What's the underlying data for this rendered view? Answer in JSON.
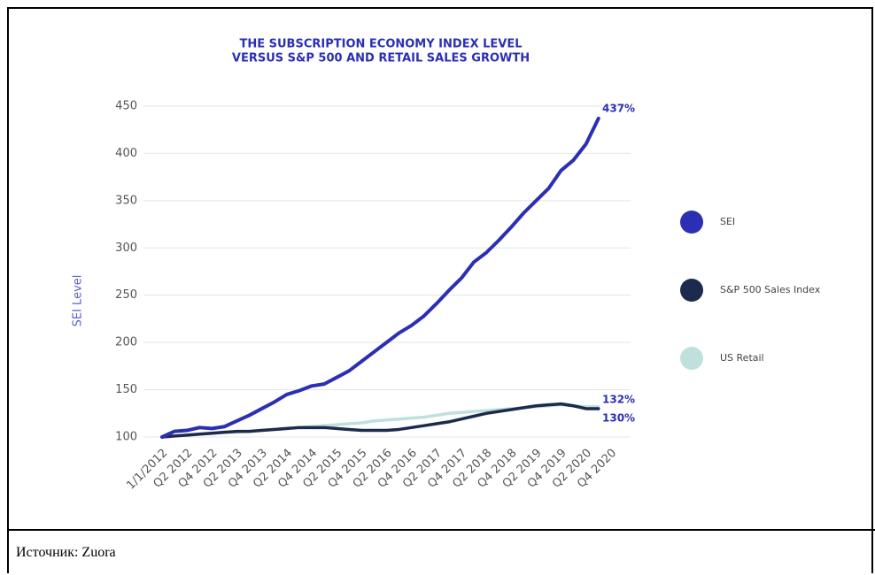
{
  "chart_data": {
    "type": "line",
    "title": [
      "THE SUBSCRIPTION ECONOMY INDEX LEVEL",
      "VERSUS S&P 500 AND RETAIL SALES GROWTH"
    ],
    "y_label": "SEI Level",
    "categories": [
      "1/1/2012",
      null,
      "Q2 2012",
      null,
      "Q4 2012",
      null,
      "Q2 2013",
      null,
      "Q4 2013",
      null,
      "Q2 2014",
      null,
      "Q4 2014",
      null,
      "Q2 2015",
      null,
      "Q4 2015",
      null,
      "Q2 2016",
      null,
      "Q4 2016",
      null,
      "Q2 2017",
      null,
      "Q4 2017",
      null,
      "Q2 2018",
      null,
      "Q4 2018",
      null,
      "Q2 2019",
      null,
      "Q4 2019",
      null,
      "Q2 2020",
      null,
      "Q4 2020"
    ],
    "series": [
      {
        "name": "SEI",
        "color": "#2b2fb3",
        "values": [
          100,
          106,
          107,
          110,
          109,
          111,
          117,
          123,
          130,
          137,
          145,
          149,
          154,
          156,
          163,
          170,
          180,
          190,
          200,
          210,
          218,
          228,
          241,
          255,
          268,
          285,
          295,
          308,
          322,
          337,
          350,
          363,
          382,
          393,
          410,
          437,
          null
        ]
      },
      {
        "name": "S&P 500 Sales Index",
        "color": "#1c2b4d",
        "values": [
          100,
          101,
          102,
          103,
          104,
          105,
          106,
          106,
          107,
          108,
          109,
          110,
          110,
          110,
          109,
          108,
          107,
          107,
          107,
          108,
          110,
          112,
          114,
          116,
          119,
          122,
          125,
          127,
          129,
          131,
          133,
          134,
          135,
          133,
          130,
          130,
          null
        ]
      },
      {
        "name": "US Retail",
        "color": "#bfe0dc",
        "values": [
          100,
          101,
          102,
          103,
          104,
          105,
          105,
          106,
          107,
          108,
          109,
          110,
          111,
          112,
          113,
          114,
          115,
          117,
          118,
          119,
          120,
          121,
          123,
          125,
          126,
          127,
          128,
          129,
          130,
          131,
          132,
          133,
          134,
          133,
          132,
          132,
          null
        ]
      }
    ],
    "annotations": [
      "437%",
      "132%",
      "130%"
    ],
    "ylim": [
      100,
      450
    ],
    "yticks": [
      100,
      150,
      200,
      250,
      300,
      350,
      400,
      450
    ],
    "grid": true
  },
  "caption": "Источник: Zuora"
}
